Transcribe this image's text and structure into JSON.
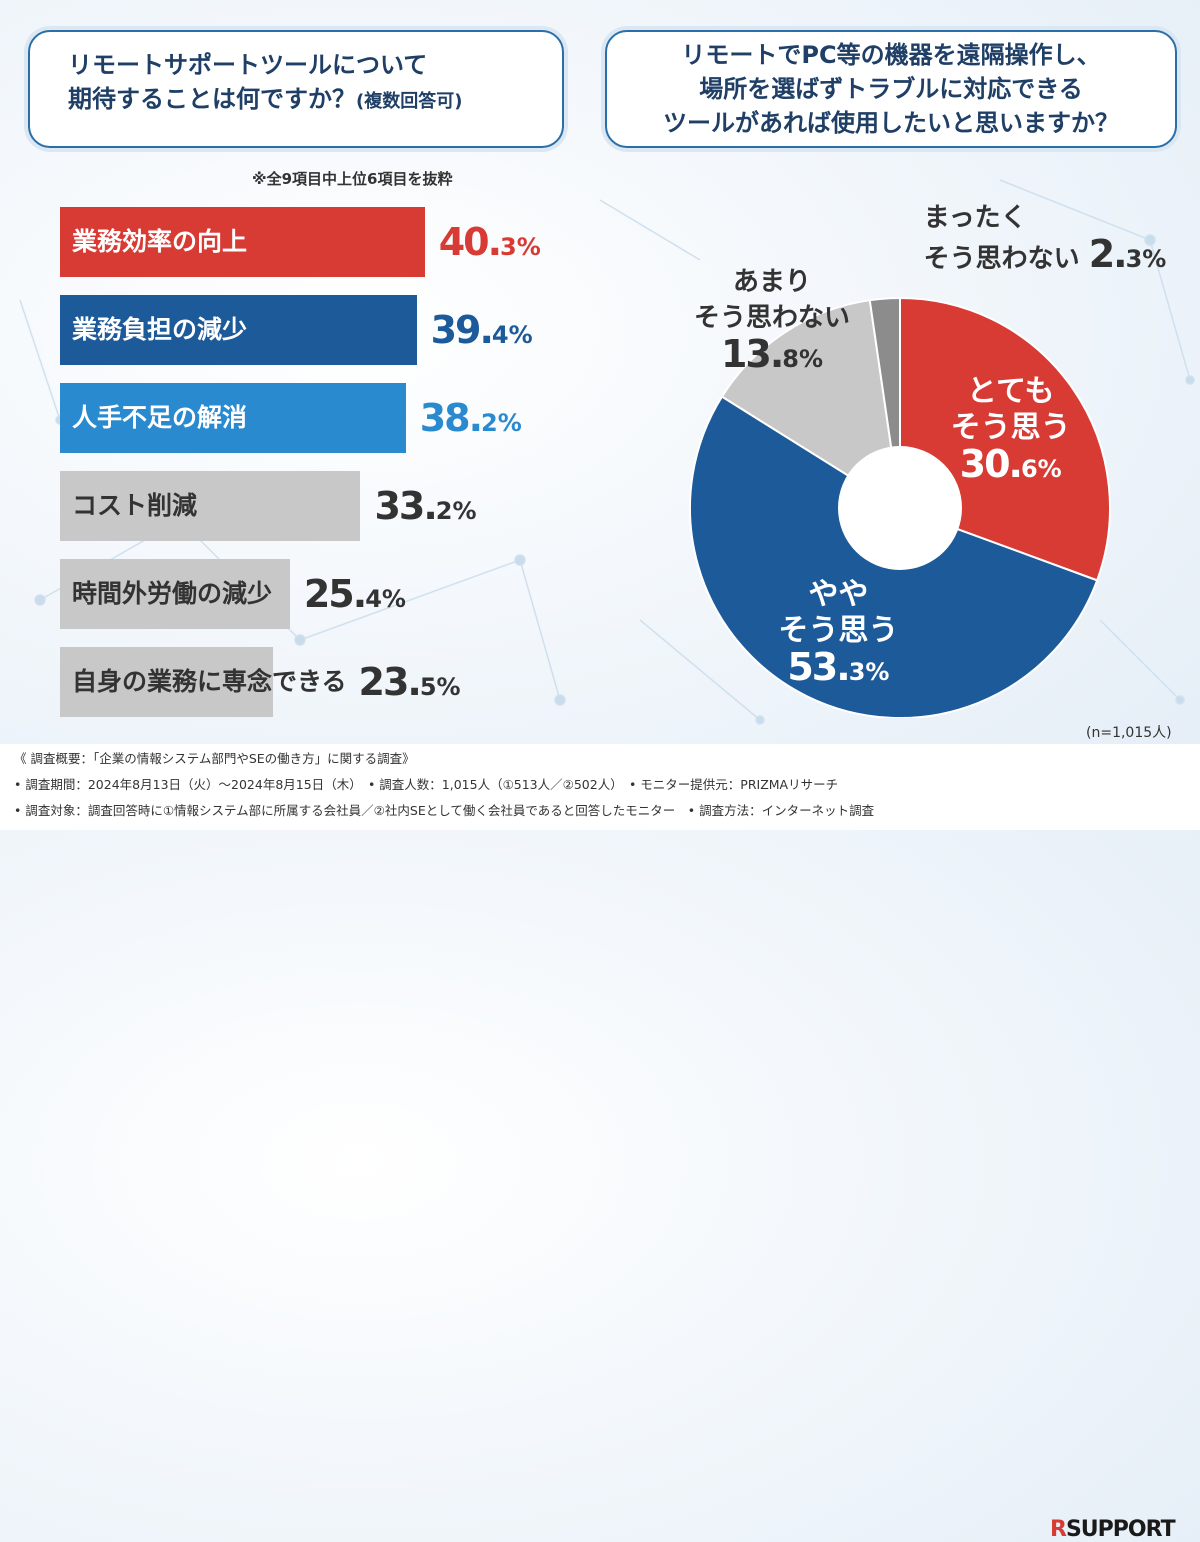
{
  "left_question": {
    "line1": "リモートサポートツールについて",
    "line2": "期待することは何ですか？",
    "line2_sub": "(複数回答可)",
    "note": "※全9項目中上位6項目を抜粋"
  },
  "right_question": {
    "lines": [
      "リモートでPC等の機器を遠隔操作し、",
      "場所を選ばずトラブルに対応できる",
      "ツールがあれば使用したいと思いますか？"
    ],
    "n_label": "(n=1,015人)"
  },
  "chart_data": [
    {
      "type": "bar",
      "orientation": "horizontal",
      "categories": [
        "業務効率の向上",
        "業務負担の減少",
        "人手不足の解消",
        "コスト削減",
        "時間外労働の減少",
        "自身の業務に専念できる"
      ],
      "values": [
        40.3,
        39.4,
        38.2,
        33.2,
        25.4,
        23.5
      ],
      "value_labels": [
        {
          "int": "40.",
          "dec": "3%"
        },
        {
          "int": "39.",
          "dec": "4%"
        },
        {
          "int": "38.",
          "dec": "2%"
        },
        {
          "int": "33.",
          "dec": "2%"
        },
        {
          "int": "25.",
          "dec": "4%"
        },
        {
          "int": "23.",
          "dec": "5%"
        }
      ],
      "unit": "%",
      "colors": [
        "#d83a34",
        "#1c5a9a",
        "#2a8ad0",
        "#c8c8c8",
        "#c8c8c8",
        "#c8c8c8"
      ],
      "label_colors": [
        "#ffffff",
        "#ffffff",
        "#ffffff",
        "#333333",
        "#333333",
        "#333333"
      ],
      "value_colors": [
        "#d83a34",
        "#1c5a9a",
        "#2a8ad0",
        "#333333",
        "#333333",
        "#333333"
      ]
    },
    {
      "type": "pie",
      "donut": true,
      "start": "top",
      "direction": "clockwise",
      "slices": [
        {
          "name_lines": [
            "とても",
            "そう思う"
          ],
          "value": 30.6,
          "int": "30.",
          "dec": "6%",
          "color": "#d83a34",
          "text_color": "#ffffff"
        },
        {
          "name_lines": [
            "やや",
            "そう思う"
          ],
          "value": 53.3,
          "int": "53.",
          "dec": "3%",
          "color": "#1c5a9a",
          "text_color": "#ffffff"
        },
        {
          "name_lines": [
            "あまり",
            "そう思わない"
          ],
          "value": 13.8,
          "int": "13.",
          "dec": "8%",
          "color": "#c8c8c8",
          "text_color": "#333333"
        },
        {
          "name_lines": [
            "まったく",
            "そう思わない"
          ],
          "value": 2.3,
          "int": "2.",
          "dec": "3%",
          "color": "#8c8c8c",
          "text_color": "#333333"
        }
      ]
    }
  ],
  "footer": {
    "lines": [
      "《 調査概要：「企業の情報システム部門やSEの働き方」に関する調査》",
      "• 調査期間：2024年8月13日（火）～2024年8月15日（木）　• 調査人数：1,015人（①513人／②502人）　• モニター提供元：PRIZMAリサーチ",
      "• 調査対象：調査回答時に①情報システム部に所属する会社員／②社内SEとして働く会社員であると回答したモニター　• 調査方法：インターネット調査"
    ],
    "logo_r": "R",
    "logo_text": "SUPPORT"
  }
}
